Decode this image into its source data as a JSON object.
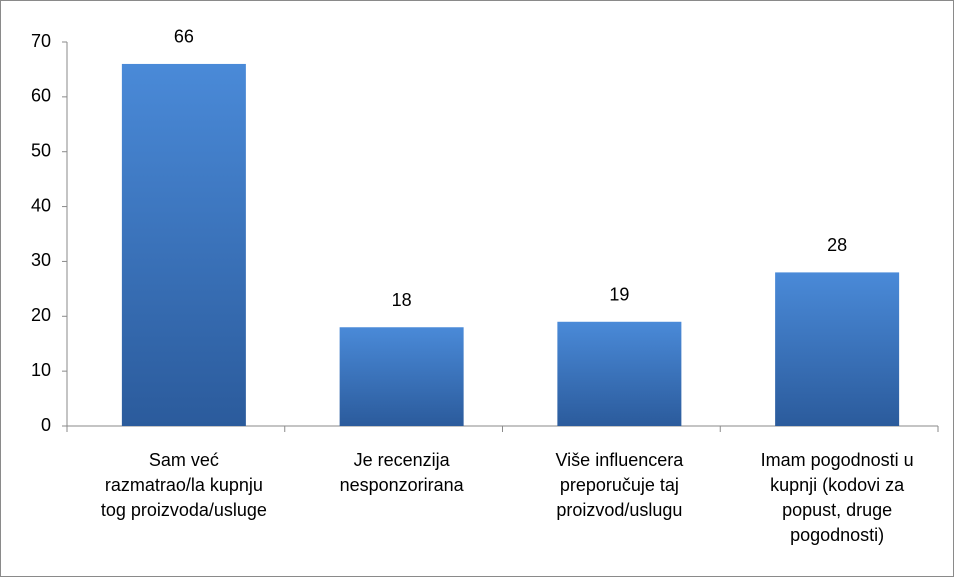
{
  "chart_data": {
    "type": "bar",
    "categories": [
      "Sam već razmatrao/la kupnju tog proizvoda/usluge",
      "Je recenzija nesponzorirana",
      "Više influencera preporučuje taj proizvod/uslugu",
      "Imam pogodnosti u kupnji (kodovi za popust, druge pogodnosti)"
    ],
    "values": [
      66,
      18,
      19,
      28
    ],
    "color": "#3d78c4",
    "ylim": [
      0,
      70
    ],
    "yticks": [
      0,
      10,
      20,
      30,
      40,
      50,
      60,
      70
    ],
    "grid": false
  }
}
